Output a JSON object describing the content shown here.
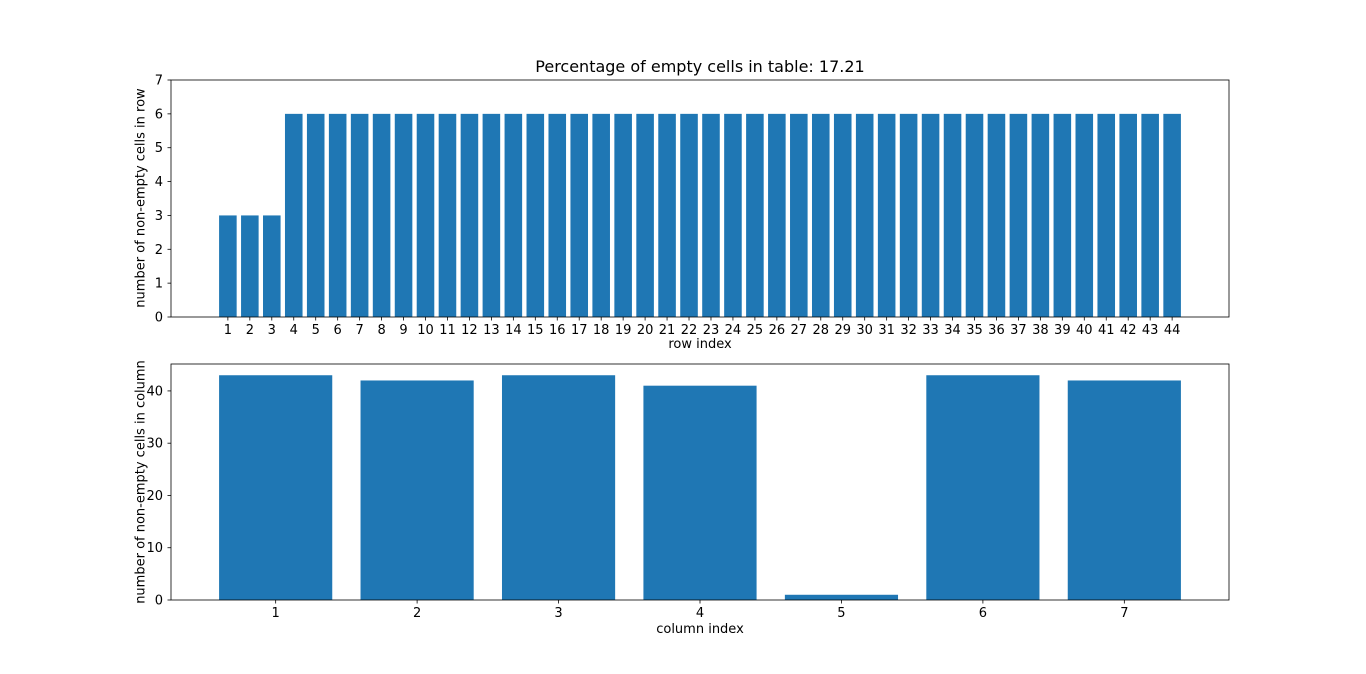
{
  "figure": {
    "background": "#ffffff",
    "bar_color": "#1f77b4",
    "axis_color": "#000000",
    "empty_cells_percentage": 17.21
  },
  "chart_data": [
    {
      "type": "bar",
      "name": "row-chart",
      "title": "Percentage of empty cells in table: 17.21",
      "xlabel": "row index",
      "ylabel": "number of non-empty cells in row",
      "categories": [
        "1",
        "2",
        "3",
        "4",
        "5",
        "6",
        "7",
        "8",
        "9",
        "10",
        "11",
        "12",
        "13",
        "14",
        "15",
        "16",
        "17",
        "18",
        "19",
        "20",
        "21",
        "22",
        "23",
        "24",
        "25",
        "26",
        "27",
        "28",
        "29",
        "30",
        "31",
        "32",
        "33",
        "34",
        "35",
        "36",
        "37",
        "38",
        "39",
        "40",
        "41",
        "42",
        "43",
        "44"
      ],
      "values": [
        3,
        3,
        3,
        6,
        6,
        6,
        6,
        6,
        6,
        6,
        6,
        6,
        6,
        6,
        6,
        6,
        6,
        6,
        6,
        6,
        6,
        6,
        6,
        6,
        6,
        6,
        6,
        6,
        6,
        6,
        6,
        6,
        6,
        6,
        6,
        6,
        6,
        6,
        6,
        6,
        6,
        6,
        6,
        6
      ],
      "ylim": [
        0,
        7
      ],
      "yticks": [
        0,
        1,
        2,
        3,
        4,
        5,
        6,
        7
      ],
      "grid": false,
      "legend": null
    },
    {
      "type": "bar",
      "name": "column-chart",
      "title": "",
      "xlabel": "column index",
      "ylabel": "number of non-empty cells in column",
      "categories": [
        "1",
        "2",
        "3",
        "4",
        "5",
        "6",
        "7"
      ],
      "values": [
        43,
        42,
        43,
        41,
        1,
        43,
        42
      ],
      "ylim": [
        0,
        45.15
      ],
      "yticks": [
        0,
        10,
        20,
        30,
        40
      ],
      "grid": false,
      "legend": null
    }
  ]
}
